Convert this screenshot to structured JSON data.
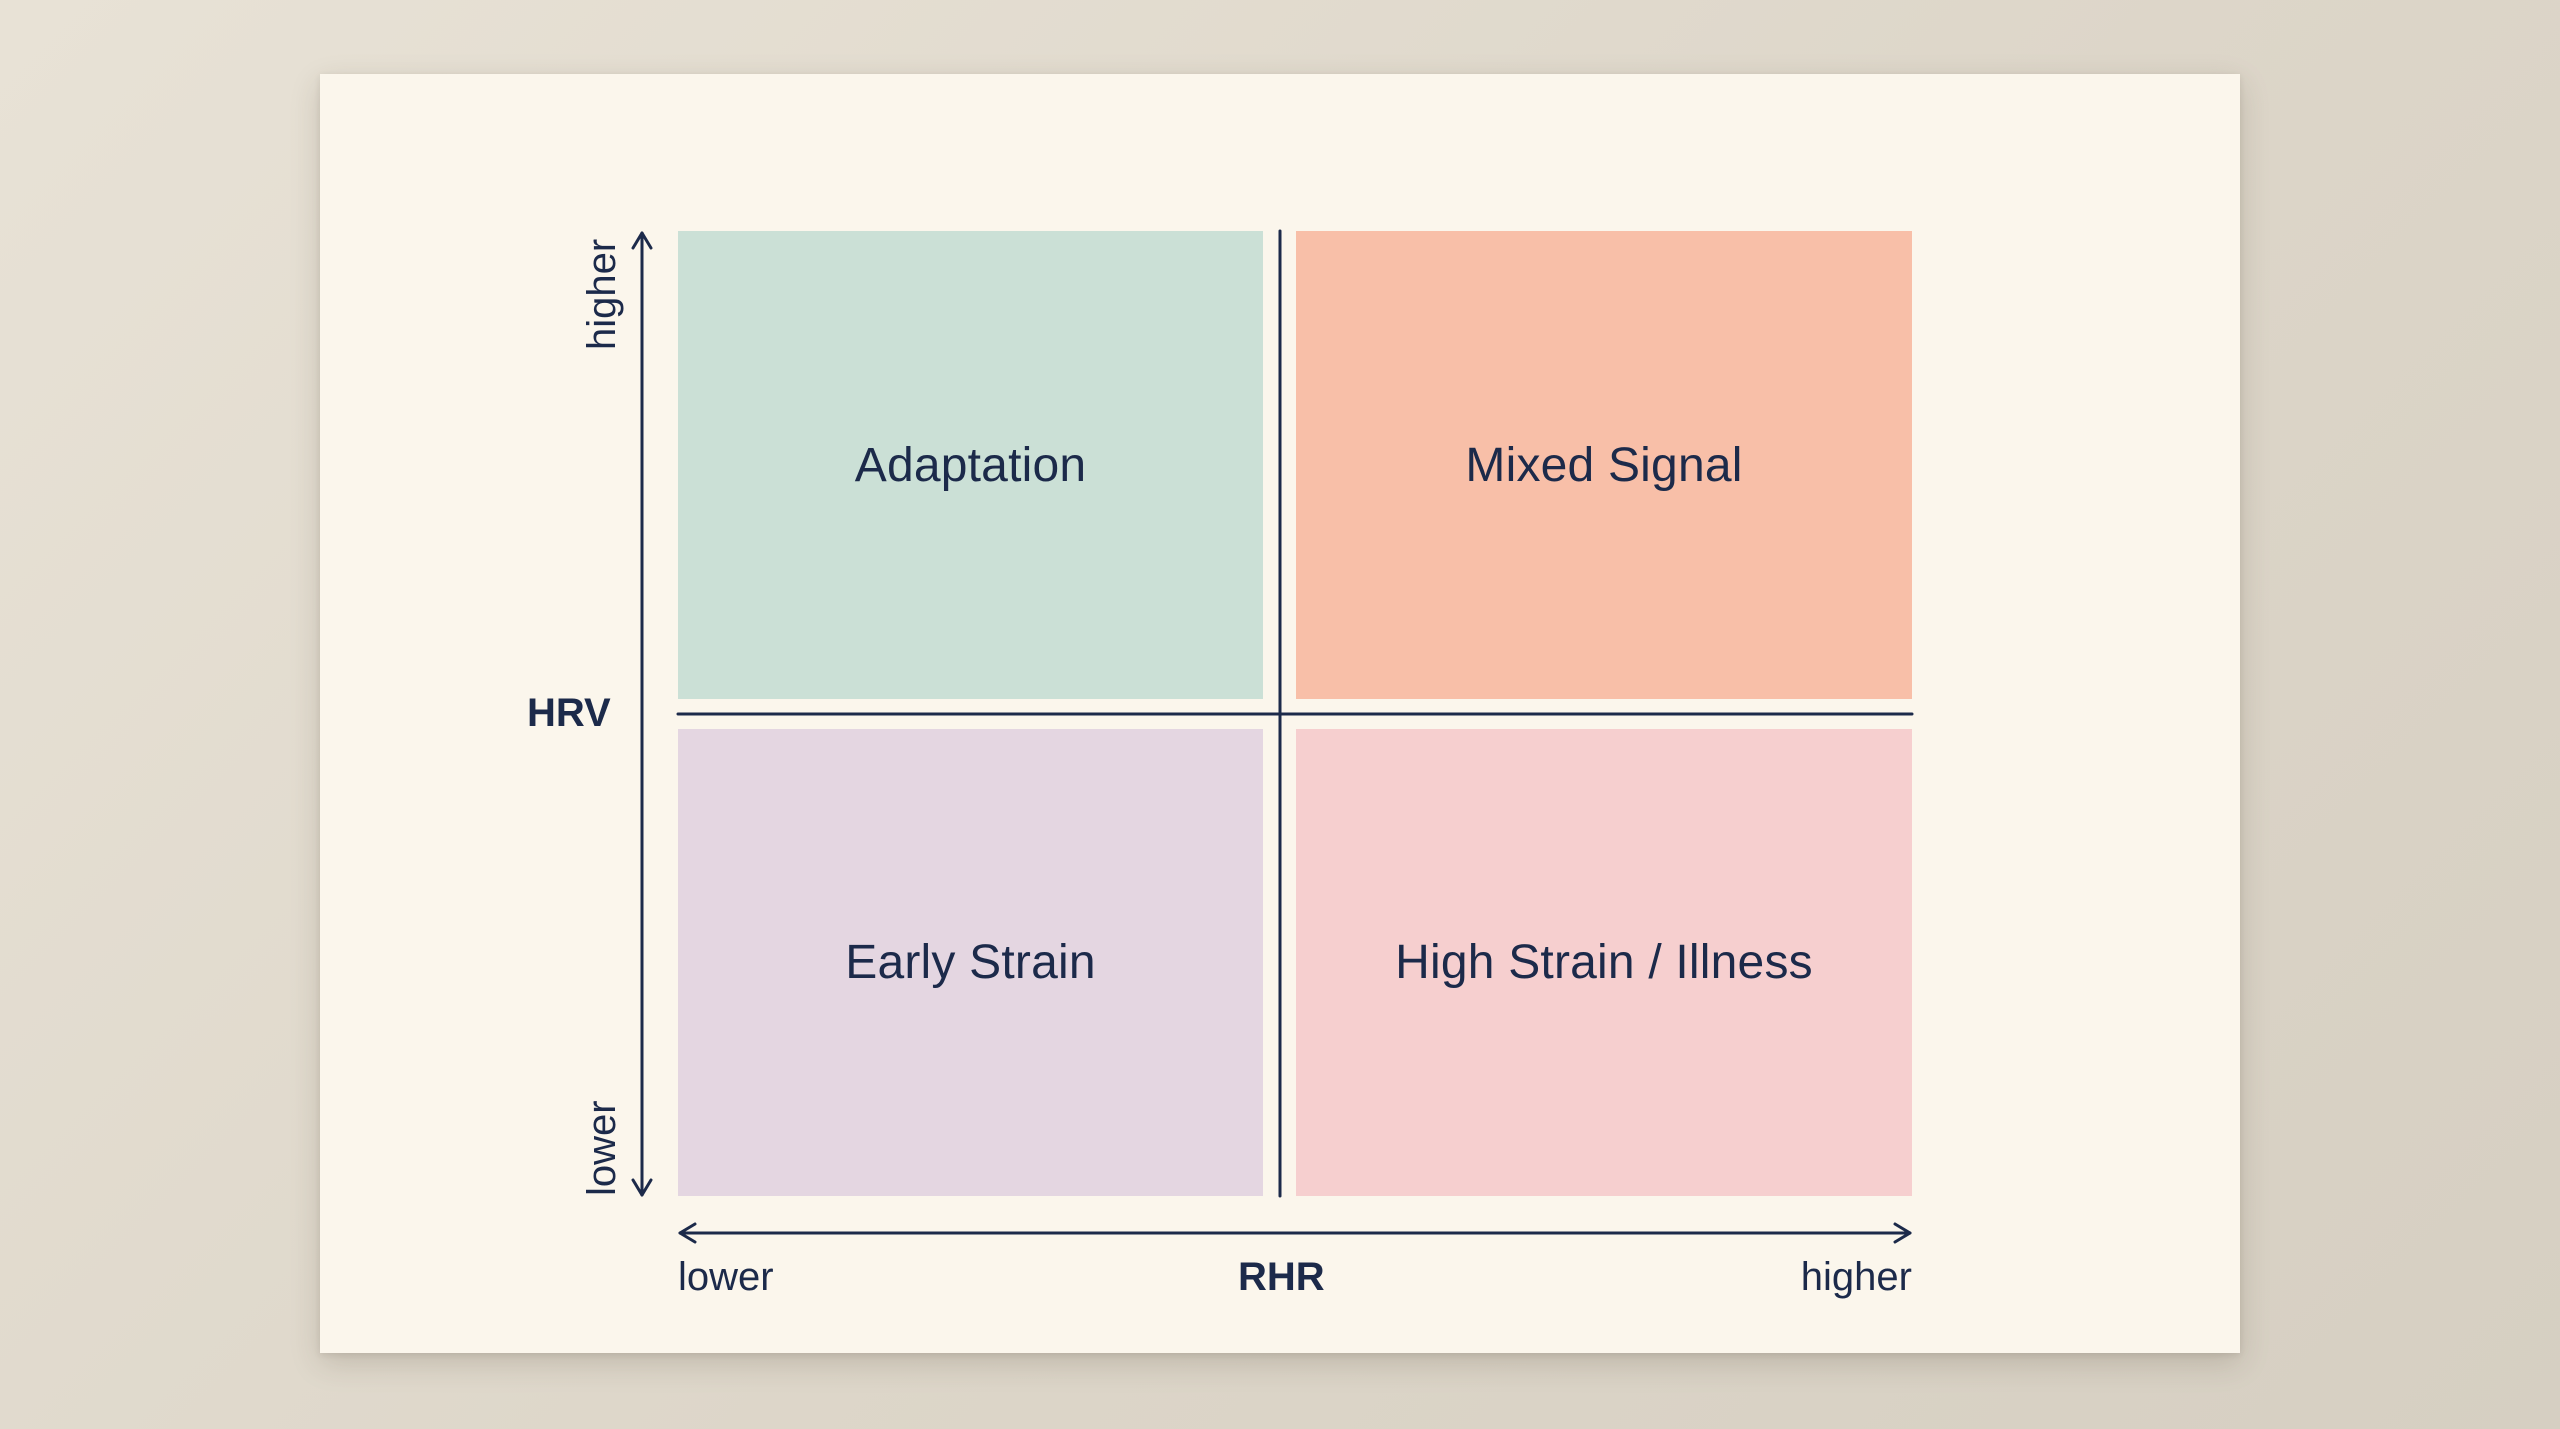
{
  "diagram": {
    "quadrants": {
      "top_left": {
        "label": "Adaptation",
        "color": "#cbe0d6"
      },
      "top_right": {
        "label": "Mixed Signal",
        "color": "#f8bfa8"
      },
      "bottom_left": {
        "label": "Early Strain",
        "color": "#e4d6e1"
      },
      "bottom_right": {
        "label": "High Strain / Illness",
        "color": "#f6cfcf"
      }
    },
    "y_axis": {
      "title": "HRV",
      "high_label": "higher",
      "low_label": "lower"
    },
    "x_axis": {
      "title": "RHR",
      "low_label": "lower",
      "high_label": "higher"
    },
    "line_color": "#1c2a4a",
    "card_color": "#fbf6ec"
  }
}
